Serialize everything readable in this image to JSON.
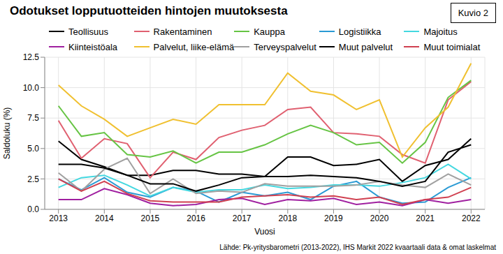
{
  "chart_data": {
    "type": "line",
    "title": "Odotukset lopputuotteiden hintojen muutoksesta",
    "figure_label": "Kuvio 2",
    "source": "Lähde: Pk-yritysbarometri (2013-2022), IHS Markit 2022 kvaartaali data & omat laskelmat",
    "x_label": "Vuosi",
    "y_label": "Saldoluku (%)",
    "x": [
      2013,
      2013.5,
      2014,
      2014.5,
      2015,
      2015.5,
      2016,
      2016.5,
      2017,
      2017.5,
      2018,
      2018.5,
      2019,
      2019.5,
      2020,
      2020.5,
      2021,
      2021.5,
      2022
    ],
    "xlim": [
      2012.7,
      2022.3
    ],
    "xticks": [
      2013,
      2014,
      2015,
      2016,
      2017,
      2018,
      2019,
      2020,
      2021,
      2022
    ],
    "ylim": [
      0,
      12.5
    ],
    "yticks": [
      {
        "value": 0,
        "label": "0.0"
      },
      {
        "value": 2.5,
        "label": "2.5"
      },
      {
        "value": 5,
        "label": "5.0"
      },
      {
        "value": 7.5,
        "label": "7.5"
      },
      {
        "value": 10,
        "label": "10.0"
      },
      {
        "value": 12.5,
        "label": "12.5"
      }
    ],
    "grid": true,
    "legend": "top",
    "series": [
      {
        "name": "Teollisuus",
        "color": "#000000",
        "values": [
          5.6,
          4.1,
          3.5,
          2.8,
          2.8,
          3.2,
          3.2,
          2.9,
          2.9,
          2.7,
          4.3,
          4.3,
          3.6,
          3.7,
          4.1,
          2.3,
          3.6,
          4.1,
          5.8
        ]
      },
      {
        "name": "Rakentaminen",
        "color": "#e06070",
        "values": [
          7.3,
          4.2,
          5.8,
          5.4,
          2.6,
          4.7,
          4.1,
          5.9,
          6.5,
          6.9,
          8.2,
          8.4,
          6.3,
          6.2,
          6.0,
          4.5,
          3.8,
          9.0,
          10.5
        ]
      },
      {
        "name": "Kauppa",
        "color": "#66c444",
        "values": [
          8.5,
          6.0,
          6.3,
          4.5,
          4.3,
          4.8,
          3.8,
          4.7,
          4.7,
          5.3,
          6.2,
          6.9,
          6.3,
          5.3,
          5.5,
          3.8,
          5.5,
          9.2,
          10.6
        ]
      },
      {
        "name": "Logistiikka",
        "color": "#2a9ad4",
        "values": [
          2.5,
          1.6,
          2.6,
          1.4,
          1.0,
          1.8,
          1.5,
          0.6,
          1.4,
          1.1,
          1.4,
          0.8,
          1.9,
          2.3,
          1.0,
          0.5,
          0.6,
          1.8,
          2.6
        ]
      },
      {
        "name": "Majoitus",
        "color": "#44d8e0",
        "values": [
          1.8,
          2.6,
          2.8,
          2.0,
          1.1,
          1.8,
          1.4,
          1.6,
          1.6,
          2.0,
          1.7,
          1.8,
          2.0,
          2.0,
          1.9,
          2.2,
          2.6,
          3.7,
          2.5
        ]
      },
      {
        "name": "Kiinteistöala",
        "color": "#a020a0",
        "values": [
          0.8,
          0.8,
          1.7,
          1.2,
          0.5,
          0.3,
          0.4,
          0.8,
          0.9,
          0.4,
          0.8,
          0.7,
          0.9,
          0.4,
          0.6,
          0.3,
          0.8,
          0.5,
          0.8
        ]
      },
      {
        "name": "Palvelut, liike-elämä",
        "color": "#f0c030",
        "values": [
          10.2,
          8.5,
          7.4,
          6.0,
          6.7,
          7.4,
          7.0,
          8.6,
          8.6,
          8.6,
          11.2,
          9.7,
          9.4,
          8.2,
          9.0,
          4.3,
          6.7,
          8.4,
          12.0
        ]
      },
      {
        "name": "Terveyspalvelut",
        "color": "#a0a0a0",
        "values": [
          3.0,
          1.5,
          3.3,
          4.2,
          1.3,
          2.5,
          1.3,
          1.5,
          1.4,
          2.1,
          1.9,
          1.9,
          1.9,
          2.0,
          2.3,
          2.0,
          1.8,
          2.9,
          2.0
        ]
      },
      {
        "name": "Muut palvelut",
        "color": "#000000",
        "values": [
          3.7,
          3.7,
          3.4,
          2.8,
          2.1,
          2.1,
          1.5,
          2.0,
          2.6,
          2.7,
          2.7,
          2.8,
          2.7,
          2.6,
          2.3,
          1.9,
          2.3,
          4.7,
          5.3
        ]
      },
      {
        "name": "Muut toimialat",
        "color": "#d04050",
        "values": [
          2.5,
          1.5,
          2.3,
          1.3,
          0.7,
          0.6,
          0.6,
          0.6,
          1.0,
          1.1,
          1.2,
          1.0,
          1.1,
          0.8,
          1.0,
          0.4,
          0.8,
          1.0,
          1.8
        ]
      }
    ]
  }
}
